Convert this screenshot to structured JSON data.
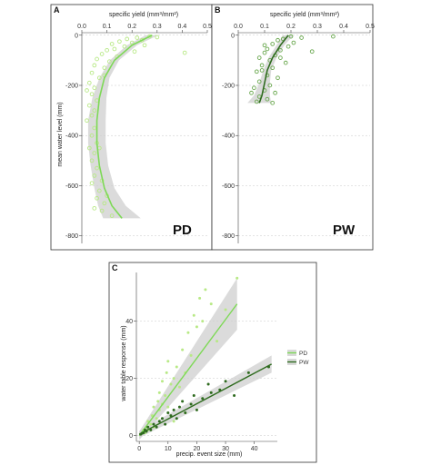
{
  "chart_data": [
    {
      "type": "scatter",
      "panel_label": "A",
      "site_label": "PD",
      "xlabel": "specific yield (mm³/mm²)",
      "ylabel": "mean water level (mm)",
      "x_ticks": [
        "0.0",
        "0.1",
        "0.2",
        "0.3",
        "0.4",
        "0.5"
      ],
      "y_ticks": [
        "0",
        "-200",
        "-400",
        "-600",
        "-800"
      ],
      "xlim": [
        0,
        0.5
      ],
      "ylim": [
        -830,
        10
      ],
      "x_axis_position": "top",
      "grid": "horizontal dashed",
      "point_color": "#b8e986",
      "line_color": "#7ed957",
      "band_color": "#cfcfcf",
      "points": [
        {
          "x": 0.27,
          "y": -5
        },
        {
          "x": 0.22,
          "y": -10
        },
        {
          "x": 0.18,
          "y": -15
        },
        {
          "x": 0.3,
          "y": -8
        },
        {
          "x": 0.24,
          "y": -20
        },
        {
          "x": 0.15,
          "y": -25
        },
        {
          "x": 0.2,
          "y": -30
        },
        {
          "x": 0.12,
          "y": -35
        },
        {
          "x": 0.25,
          "y": -40
        },
        {
          "x": 0.17,
          "y": -45
        },
        {
          "x": 0.13,
          "y": -55
        },
        {
          "x": 0.1,
          "y": -60
        },
        {
          "x": 0.21,
          "y": -65
        },
        {
          "x": 0.08,
          "y": -75
        },
        {
          "x": 0.41,
          "y": -70
        },
        {
          "x": 0.14,
          "y": -85
        },
        {
          "x": 0.06,
          "y": -95
        },
        {
          "x": 0.11,
          "y": -105
        },
        {
          "x": 0.05,
          "y": -120
        },
        {
          "x": 0.09,
          "y": -130
        },
        {
          "x": 0.04,
          "y": -150
        },
        {
          "x": 0.07,
          "y": -170
        },
        {
          "x": 0.03,
          "y": -190
        },
        {
          "x": 0.05,
          "y": -210
        },
        {
          "x": 0.04,
          "y": -235
        },
        {
          "x": 0.06,
          "y": -260
        },
        {
          "x": 0.03,
          "y": -280
        },
        {
          "x": 0.05,
          "y": -300
        },
        {
          "x": 0.04,
          "y": -320
        },
        {
          "x": 0.02,
          "y": -340
        },
        {
          "x": 0.05,
          "y": -370
        },
        {
          "x": 0.04,
          "y": -400
        },
        {
          "x": 0.06,
          "y": -430
        },
        {
          "x": 0.03,
          "y": -450
        },
        {
          "x": 0.05,
          "y": -470
        },
        {
          "x": 0.04,
          "y": -500
        },
        {
          "x": 0.06,
          "y": -530
        },
        {
          "x": 0.05,
          "y": -560
        },
        {
          "x": 0.04,
          "y": -590
        },
        {
          "x": 0.07,
          "y": -620
        },
        {
          "x": 0.06,
          "y": -650
        },
        {
          "x": 0.09,
          "y": -670
        },
        {
          "x": 0.08,
          "y": -700
        },
        {
          "x": 0.12,
          "y": -720
        },
        {
          "x": 0.05,
          "y": -690
        },
        {
          "x": 0.1,
          "y": -640
        },
        {
          "x": 0.08,
          "y": -580
        },
        {
          "x": 0.07,
          "y": -450
        },
        {
          "x": 0.02,
          "y": -220
        },
        {
          "x": 0.09,
          "y": -160
        }
      ],
      "trend": [
        {
          "x": 0.28,
          "y": 0
        },
        {
          "x": 0.2,
          "y": -40
        },
        {
          "x": 0.13,
          "y": -100
        },
        {
          "x": 0.09,
          "y": -170
        },
        {
          "x": 0.07,
          "y": -250
        },
        {
          "x": 0.06,
          "y": -340
        },
        {
          "x": 0.06,
          "y": -430
        },
        {
          "x": 0.07,
          "y": -520
        },
        {
          "x": 0.09,
          "y": -610
        },
        {
          "x": 0.12,
          "y": -680
        },
        {
          "x": 0.16,
          "y": -730
        }
      ],
      "band_halfwidth": [
        0.025,
        0.02,
        0.018,
        0.02,
        0.028,
        0.035,
        0.035,
        0.035,
        0.04,
        0.055,
        0.075
      ]
    },
    {
      "type": "scatter",
      "panel_label": "B",
      "site_label": "PW",
      "xlabel": "specific yield (mm³/mm²)",
      "ylabel": "",
      "x_ticks": [
        "0.0",
        "0.1",
        "0.2",
        "0.3",
        "0.4",
        "0.5"
      ],
      "y_ticks": [
        "0",
        "-200",
        "-400",
        "-600",
        "-800"
      ],
      "xlim": [
        0,
        0.5
      ],
      "ylim": [
        -830,
        10
      ],
      "x_axis_position": "top",
      "grid": "horizontal dashed",
      "point_color": "#6aa84f",
      "line_color": "#2f6b1f",
      "band_color": "#cfcfcf",
      "points": [
        {
          "x": 0.2,
          "y": -5
        },
        {
          "x": 0.24,
          "y": -10
        },
        {
          "x": 0.17,
          "y": -15
        },
        {
          "x": 0.36,
          "y": -5
        },
        {
          "x": 0.15,
          "y": -20
        },
        {
          "x": 0.21,
          "y": -30
        },
        {
          "x": 0.13,
          "y": -35
        },
        {
          "x": 0.19,
          "y": -45
        },
        {
          "x": 0.11,
          "y": -55
        },
        {
          "x": 0.16,
          "y": -60
        },
        {
          "x": 0.1,
          "y": -70
        },
        {
          "x": 0.28,
          "y": -65
        },
        {
          "x": 0.14,
          "y": -80
        },
        {
          "x": 0.08,
          "y": -90
        },
        {
          "x": 0.12,
          "y": -100
        },
        {
          "x": 0.18,
          "y": -110
        },
        {
          "x": 0.09,
          "y": -120
        },
        {
          "x": 0.13,
          "y": -130
        },
        {
          "x": 0.07,
          "y": -145
        },
        {
          "x": 0.11,
          "y": -160
        },
        {
          "x": 0.15,
          "y": -170
        },
        {
          "x": 0.08,
          "y": -185
        },
        {
          "x": 0.12,
          "y": -200
        },
        {
          "x": 0.06,
          "y": -210
        },
        {
          "x": 0.1,
          "y": -220
        },
        {
          "x": 0.14,
          "y": -230
        },
        {
          "x": 0.08,
          "y": -245
        },
        {
          "x": 0.11,
          "y": -255
        },
        {
          "x": 0.07,
          "y": -265
        },
        {
          "x": 0.13,
          "y": -270
        },
        {
          "x": 0.09,
          "y": -140
        },
        {
          "x": 0.16,
          "y": -90
        },
        {
          "x": 0.05,
          "y": -230
        },
        {
          "x": 0.1,
          "y": -40
        }
      ],
      "trend": [
        {
          "x": 0.19,
          "y": 0
        },
        {
          "x": 0.16,
          "y": -40
        },
        {
          "x": 0.13,
          "y": -90
        },
        {
          "x": 0.11,
          "y": -140
        },
        {
          "x": 0.1,
          "y": -190
        },
        {
          "x": 0.09,
          "y": -240
        },
        {
          "x": 0.08,
          "y": -270
        }
      ],
      "band_halfwidth": [
        0.02,
        0.015,
        0.015,
        0.015,
        0.02,
        0.03,
        0.045
      ]
    },
    {
      "type": "scatter",
      "panel_label": "C",
      "xlabel": "precip. event size (mm)",
      "ylabel": "water table response (mm)",
      "x_ticks": [
        "0",
        "10",
        "20",
        "30",
        "40"
      ],
      "y_ticks": [
        "0",
        "20",
        "40"
      ],
      "xlim": [
        -1,
        48
      ],
      "ylim": [
        -2,
        57
      ],
      "grid": "horizontal dashed",
      "legend": {
        "position": "right",
        "entries": [
          "PD",
          "PW"
        ]
      },
      "series": [
        {
          "name": "PD",
          "color": "#b8e986",
          "line_color": "#7ed957",
          "points": [
            {
              "x": 0.5,
              "y": 0.5
            },
            {
              "x": 1,
              "y": 1
            },
            {
              "x": 1.5,
              "y": 2
            },
            {
              "x": 2,
              "y": 1
            },
            {
              "x": 2.5,
              "y": 3
            },
            {
              "x": 3,
              "y": 2
            },
            {
              "x": 3,
              "y": 5
            },
            {
              "x": 4,
              "y": 4
            },
            {
              "x": 4.5,
              "y": 7
            },
            {
              "x": 5,
              "y": 3
            },
            {
              "x": 5,
              "y": 10
            },
            {
              "x": 6,
              "y": 6
            },
            {
              "x": 6.5,
              "y": 12
            },
            {
              "x": 7,
              "y": 9
            },
            {
              "x": 7,
              "y": 15
            },
            {
              "x": 8,
              "y": 11
            },
            {
              "x": 8,
              "y": 19
            },
            {
              "x": 9,
              "y": 14
            },
            {
              "x": 9.5,
              "y": 22
            },
            {
              "x": 10,
              "y": 10
            },
            {
              "x": 10,
              "y": 26
            },
            {
              "x": 11,
              "y": 18
            },
            {
              "x": 12,
              "y": 20
            },
            {
              "x": 13,
              "y": 24
            },
            {
              "x": 14,
              "y": 17
            },
            {
              "x": 15,
              "y": 30
            },
            {
              "x": 16,
              "y": 22
            },
            {
              "x": 17,
              "y": 36
            },
            {
              "x": 18,
              "y": 28
            },
            {
              "x": 19,
              "y": 42
            },
            {
              "x": 20,
              "y": 38
            },
            {
              "x": 21,
              "y": 48
            },
            {
              "x": 22,
              "y": 40
            },
            {
              "x": 23,
              "y": 51
            },
            {
              "x": 25,
              "y": 46
            },
            {
              "x": 27,
              "y": 33
            },
            {
              "x": 30,
              "y": 44
            },
            {
              "x": 34,
              "y": 55
            },
            {
              "x": 12,
              "y": 5
            },
            {
              "x": 16,
              "y": 8
            }
          ],
          "trend": [
            {
              "x": 0,
              "y": 0
            },
            {
              "x": 34,
              "y": 46
            }
          ],
          "band_halfwidth": [
            1.5,
            9
          ]
        },
        {
          "name": "PW",
          "color": "#2f6b1f",
          "line_color": "#2f6b1f",
          "points": [
            {
              "x": 0.5,
              "y": 0.5
            },
            {
              "x": 1,
              "y": 0.8
            },
            {
              "x": 1.5,
              "y": 1
            },
            {
              "x": 2,
              "y": 2
            },
            {
              "x": 2.5,
              "y": 1.5
            },
            {
              "x": 3,
              "y": 3
            },
            {
              "x": 4,
              "y": 2
            },
            {
              "x": 5,
              "y": 4
            },
            {
              "x": 6,
              "y": 3
            },
            {
              "x": 7,
              "y": 5
            },
            {
              "x": 8,
              "y": 6
            },
            {
              "x": 9,
              "y": 4
            },
            {
              "x": 10,
              "y": 8
            },
            {
              "x": 11,
              "y": 7
            },
            {
              "x": 12,
              "y": 9
            },
            {
              "x": 13,
              "y": 6
            },
            {
              "x": 14,
              "y": 10
            },
            {
              "x": 15,
              "y": 12
            },
            {
              "x": 16,
              "y": 8
            },
            {
              "x": 18,
              "y": 11
            },
            {
              "x": 19,
              "y": 14
            },
            {
              "x": 20,
              "y": 9
            },
            {
              "x": 22,
              "y": 13
            },
            {
              "x": 24,
              "y": 18
            },
            {
              "x": 25,
              "y": 15
            },
            {
              "x": 28,
              "y": 16
            },
            {
              "x": 30,
              "y": 19
            },
            {
              "x": 33,
              "y": 14
            },
            {
              "x": 38,
              "y": 22
            },
            {
              "x": 45,
              "y": 24
            }
          ],
          "trend": [
            {
              "x": 0,
              "y": 0.5
            },
            {
              "x": 46,
              "y": 25
            }
          ],
          "band_halfwidth": [
            1.2,
            3
          ]
        }
      ]
    }
  ]
}
